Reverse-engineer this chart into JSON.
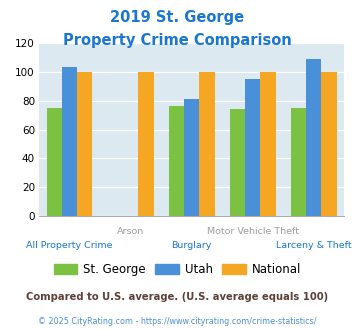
{
  "title_line1": "2019 St. George",
  "title_line2": "Property Crime Comparison",
  "categories": [
    "All Property Crime",
    "Arson",
    "Burglary",
    "Motor Vehicle Theft",
    "Larceny & Theft"
  ],
  "st_george": [
    75,
    0,
    76,
    74,
    75
  ],
  "utah": [
    103,
    0,
    81,
    95,
    109
  ],
  "national": [
    100,
    100,
    100,
    100,
    100
  ],
  "color_stgeorge": "#7bc142",
  "color_utah": "#4a90d9",
  "color_national": "#f5a623",
  "color_bg_plot": "#dce9f0",
  "color_title1": "#1a237e",
  "color_title2": "#1976d2",
  "color_xlabel_upper": "#9e9e9e",
  "color_xlabel_lower": "#1976d2",
  "ylim": [
    0,
    120
  ],
  "yticks": [
    0,
    20,
    40,
    60,
    80,
    100,
    120
  ],
  "legend_labels": [
    "St. George",
    "Utah",
    "National"
  ],
  "footnote1": "Compared to U.S. average. (U.S. average equals 100)",
  "footnote2": "© 2025 CityRating.com - https://www.cityrating.com/crime-statistics/",
  "footnote1_color": "#5d4037",
  "footnote2_color": "#4a90d9"
}
